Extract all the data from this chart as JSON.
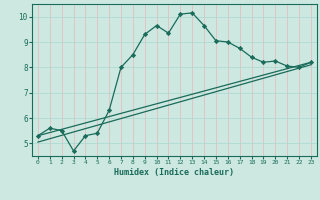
{
  "xlabel": "Humidex (Indice chaleur)",
  "ylabel": "",
  "background_color": "#cce8e0",
  "grid_color_v": "#e8b8b8",
  "grid_color_h": "#a8d8d0",
  "line_color": "#1a6b5a",
  "xlim": [
    -0.5,
    23.5
  ],
  "ylim": [
    4.5,
    10.5
  ],
  "xticks": [
    0,
    1,
    2,
    3,
    4,
    5,
    6,
    7,
    8,
    9,
    10,
    11,
    12,
    13,
    14,
    15,
    16,
    17,
    18,
    19,
    20,
    21,
    22,
    23
  ],
  "yticks": [
    5,
    6,
    7,
    8,
    9,
    10
  ],
  "curve1_x": [
    0,
    1,
    2,
    3,
    4,
    5,
    6,
    7,
    8,
    9,
    10,
    11,
    12,
    13,
    14,
    15,
    16,
    17,
    18,
    19,
    20,
    21,
    22,
    23
  ],
  "curve1_y": [
    5.3,
    5.6,
    5.5,
    4.7,
    5.3,
    5.4,
    6.3,
    8.0,
    8.5,
    9.3,
    9.65,
    9.35,
    10.1,
    10.15,
    9.65,
    9.05,
    9.0,
    8.75,
    8.4,
    8.2,
    8.25,
    8.05,
    8.0,
    8.2
  ],
  "curve2_x": [
    0,
    23
  ],
  "curve2_y": [
    5.3,
    8.2
  ],
  "curve3_x": [
    0,
    23
  ],
  "curve3_y": [
    5.05,
    8.1
  ],
  "marker": "D",
  "marker_size": 2.2,
  "line_width": 0.9
}
